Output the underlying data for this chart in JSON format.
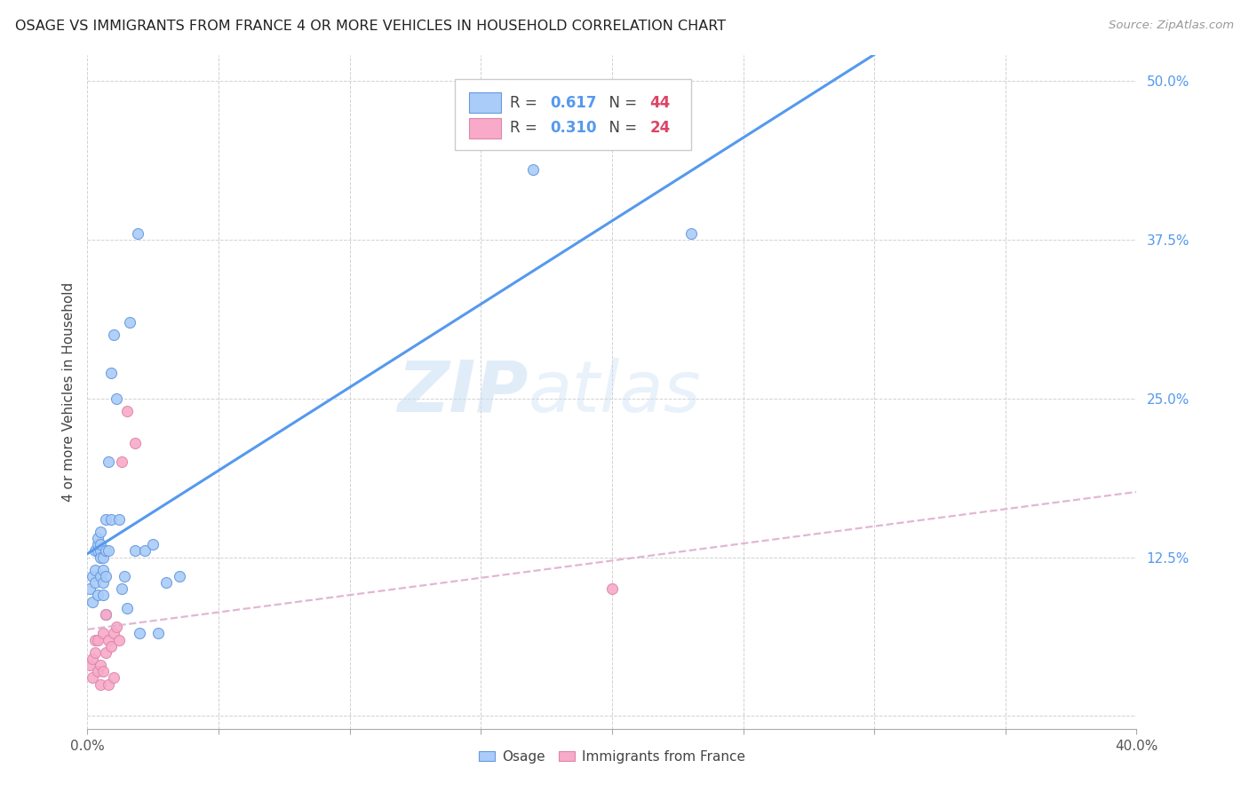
{
  "title": "OSAGE VS IMMIGRANTS FROM FRANCE 4 OR MORE VEHICLES IN HOUSEHOLD CORRELATION CHART",
  "source": "Source: ZipAtlas.com",
  "ylabel": "4 or more Vehicles in Household",
  "xlim": [
    0.0,
    0.4
  ],
  "ylim": [
    -0.01,
    0.52
  ],
  "yticks": [
    0.0,
    0.125,
    0.25,
    0.375,
    0.5
  ],
  "xticks": [
    0.0,
    0.05,
    0.1,
    0.15,
    0.2,
    0.25,
    0.3,
    0.35,
    0.4
  ],
  "osage_R": 0.617,
  "osage_N": 44,
  "france_R": 0.31,
  "france_N": 24,
  "osage_color": "#aaccf8",
  "france_color": "#f8aac8",
  "osage_edge_color": "#6699dd",
  "france_edge_color": "#dd88aa",
  "osage_line_color": "#5599ee",
  "france_line_color": "#ddaacc",
  "watermark_color": "#ddeeff",
  "legend_R_color": "#5599ee",
  "legend_N_color": "#dd4466",
  "osage_x": [
    0.001,
    0.002,
    0.002,
    0.003,
    0.003,
    0.003,
    0.004,
    0.004,
    0.004,
    0.004,
    0.005,
    0.005,
    0.005,
    0.005,
    0.005,
    0.006,
    0.006,
    0.006,
    0.006,
    0.007,
    0.007,
    0.007,
    0.007,
    0.008,
    0.008,
    0.009,
    0.009,
    0.01,
    0.011,
    0.012,
    0.013,
    0.014,
    0.015,
    0.016,
    0.018,
    0.019,
    0.02,
    0.022,
    0.025,
    0.027,
    0.03,
    0.035,
    0.17,
    0.23
  ],
  "osage_y": [
    0.1,
    0.09,
    0.11,
    0.13,
    0.115,
    0.105,
    0.13,
    0.135,
    0.14,
    0.095,
    0.13,
    0.125,
    0.135,
    0.145,
    0.11,
    0.095,
    0.105,
    0.125,
    0.115,
    0.08,
    0.11,
    0.13,
    0.155,
    0.13,
    0.2,
    0.155,
    0.27,
    0.3,
    0.25,
    0.155,
    0.1,
    0.11,
    0.085,
    0.31,
    0.13,
    0.38,
    0.065,
    0.13,
    0.135,
    0.065,
    0.105,
    0.11,
    0.43,
    0.38
  ],
  "france_x": [
    0.001,
    0.002,
    0.002,
    0.003,
    0.003,
    0.004,
    0.004,
    0.005,
    0.005,
    0.006,
    0.006,
    0.007,
    0.007,
    0.008,
    0.008,
    0.009,
    0.01,
    0.01,
    0.011,
    0.012,
    0.013,
    0.015,
    0.018,
    0.2
  ],
  "france_y": [
    0.04,
    0.03,
    0.045,
    0.05,
    0.06,
    0.035,
    0.06,
    0.025,
    0.04,
    0.065,
    0.035,
    0.05,
    0.08,
    0.06,
    0.025,
    0.055,
    0.065,
    0.03,
    0.07,
    0.06,
    0.2,
    0.24,
    0.215,
    0.1
  ]
}
